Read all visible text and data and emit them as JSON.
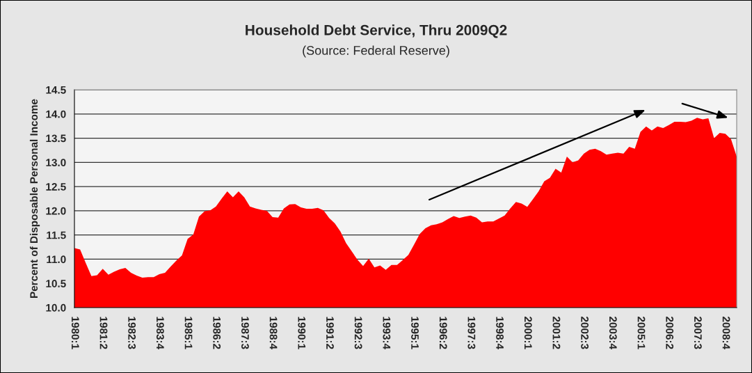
{
  "chart_data": {
    "type": "area",
    "title": "Household Debt Service, Thru 2009Q2",
    "subtitle": "(Source: Federal Reserve)",
    "ylabel": "Percent of Disposable Personal Income",
    "categories": [
      "1980:1",
      null,
      null,
      null,
      null,
      "1981:2",
      null,
      null,
      null,
      null,
      "1982:3",
      null,
      null,
      null,
      null,
      "1983:4",
      null,
      null,
      null,
      null,
      "1985:1",
      null,
      null,
      null,
      null,
      "1986:2",
      null,
      null,
      null,
      null,
      "1987:3",
      null,
      null,
      null,
      null,
      "1988:4",
      null,
      null,
      null,
      null,
      "1990:1",
      null,
      null,
      null,
      null,
      "1991:2",
      null,
      null,
      null,
      null,
      "1992:3",
      null,
      null,
      null,
      null,
      "1993:4",
      null,
      null,
      null,
      null,
      "1995:1",
      null,
      null,
      null,
      null,
      "1996:2",
      null,
      null,
      null,
      null,
      "1997:3",
      null,
      null,
      null,
      null,
      "1998:4",
      null,
      null,
      null,
      null,
      "2000:1",
      null,
      null,
      null,
      null,
      "2001:2",
      null,
      null,
      null,
      null,
      "2002:3",
      null,
      null,
      null,
      null,
      "2003:4",
      null,
      null,
      null,
      null,
      "2005:1",
      null,
      null,
      null,
      null,
      "2006:2",
      null,
      null,
      null,
      null,
      "2007:3",
      null,
      null,
      null,
      null,
      "2008:4",
      null,
      null
    ],
    "series": [
      {
        "color": "#ff0000",
        "values": [
          11.23,
          11.2,
          10.92,
          10.65,
          10.67,
          10.8,
          10.68,
          10.74,
          10.79,
          10.82,
          10.72,
          10.66,
          10.62,
          10.63,
          10.63,
          10.69,
          10.72,
          10.85,
          10.97,
          11.08,
          11.42,
          11.51,
          11.88,
          11.99,
          12.01,
          12.09,
          12.25,
          12.4,
          12.28,
          12.4,
          12.28,
          12.09,
          12.05,
          12.02,
          12.0,
          11.87,
          11.86,
          12.05,
          12.13,
          12.14,
          12.07,
          12.04,
          12.04,
          12.06,
          12.01,
          11.85,
          11.74,
          11.57,
          11.33,
          11.16,
          10.99,
          10.86,
          11.01,
          10.83,
          10.87,
          10.78,
          10.88,
          10.88,
          10.98,
          11.09,
          11.3,
          11.52,
          11.64,
          11.7,
          11.72,
          11.76,
          11.83,
          11.89,
          11.85,
          11.88,
          11.9,
          11.86,
          11.76,
          11.78,
          11.78,
          11.84,
          11.9,
          12.05,
          12.18,
          12.15,
          12.08,
          12.24,
          12.4,
          12.61,
          12.68,
          12.87,
          12.79,
          13.12,
          13.0,
          13.04,
          13.18,
          13.26,
          13.28,
          13.23,
          13.16,
          13.18,
          13.2,
          13.18,
          13.32,
          13.28,
          13.63,
          13.74,
          13.66,
          13.74,
          13.71,
          13.77,
          13.84,
          13.84,
          13.83,
          13.86,
          13.92,
          13.89,
          13.91,
          13.5,
          13.61,
          13.59,
          13.48,
          13.12
        ]
      }
    ],
    "ylim": [
      10.0,
      14.5
    ],
    "yticks": [
      {
        "value": 10.0,
        "label": "10.0"
      },
      10.5,
      {
        "value": 11.0,
        "label": "11.0"
      },
      11.5,
      {
        "value": 12.0,
        "label": "12.0"
      },
      12.5,
      {
        "value": 13.0,
        "label": "13.0"
      },
      13.5,
      {
        "value": 14.0,
        "label": "14.0"
      },
      14.5
    ],
    "grid": "y",
    "legend": false
  }
}
